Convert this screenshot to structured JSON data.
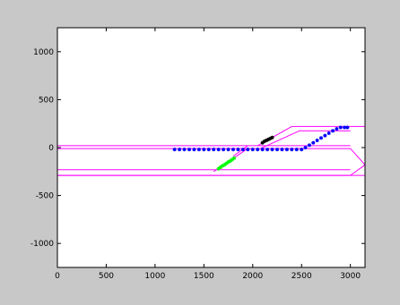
{
  "chart_data": {
    "type": "scatter",
    "xlim": [
      0,
      3150
    ],
    "ylim": [
      -1250,
      1250
    ],
    "x_ticks": [
      0,
      500,
      1000,
      1500,
      2000,
      2500,
      3000
    ],
    "y_ticks": [
      1000,
      500,
      0,
      -500,
      -1000
    ],
    "x_tick_labels": [
      "0",
      "500",
      "1000",
      "1500",
      "2000",
      "2500",
      "3000"
    ],
    "y_tick_labels": [
      "1000",
      "500",
      "0",
      "-500",
      "-1000"
    ],
    "grid": false,
    "colors": {
      "background": "#c8c8c8",
      "axes": "#ffffff",
      "outline": "#ff00ff",
      "blue": "#0000ff",
      "black": "#000000",
      "green": "#00ff00"
    },
    "outline_lines": [
      {
        "x": [
          0,
          3000
        ],
        "y": [
          -10,
          -10
        ]
      },
      {
        "x": [
          0,
          3000
        ],
        "y": [
          20,
          20
        ]
      },
      {
        "x": [
          0,
          3000
        ],
        "y": [
          -230,
          -230
        ]
      },
      {
        "x": [
          0,
          3000
        ],
        "y": [
          -290,
          -290
        ]
      },
      {
        "x": [
          2400,
          3000
        ],
        "y": [
          220,
          220
        ]
      },
      {
        "x": [
          2480,
          3000
        ],
        "y": [
          175,
          175
        ]
      },
      {
        "x": [
          2400,
          2050
        ],
        "y": [
          220,
          20
        ]
      },
      {
        "x": [
          2480,
          2080
        ],
        "y": [
          175,
          -10
        ]
      },
      {
        "x": [
          3000,
          3150
        ],
        "y": [
          220,
          220
        ]
      },
      {
        "x": [
          3150,
          3150
        ],
        "y": [
          220,
          -290
        ]
      },
      {
        "x": [
          3000,
          3150
        ],
        "y": [
          -10,
          -180
        ]
      },
      {
        "x": [
          3150,
          3000
        ],
        "y": [
          -180,
          -290
        ]
      },
      {
        "x": [
          0,
          3150
        ],
        "y": [
          -290,
          -290
        ]
      },
      {
        "x": [
          1950,
          1600
        ],
        "y": [
          -10,
          -250
        ]
      },
      {
        "x": [
          1950,
          1800
        ],
        "y": [
          20,
          -90
        ]
      }
    ],
    "series": [
      {
        "color": "blue",
        "x": [
          1200,
          1250,
          1300,
          1350,
          1400,
          1450,
          1500,
          1550,
          1600,
          1650,
          1700,
          1750,
          1800,
          1850,
          1900,
          1950,
          2000,
          2050,
          2100,
          2150,
          2200,
          2250,
          2300,
          2350,
          2400,
          2450,
          2500,
          2540,
          2580,
          2620,
          2660,
          2700,
          2740,
          2780,
          2820,
          2860,
          2900,
          2940,
          2970
        ],
        "y": [
          -20,
          -20,
          -20,
          -20,
          -20,
          -20,
          -20,
          -20,
          -20,
          -20,
          -20,
          -20,
          -20,
          -20,
          -20,
          -20,
          -20,
          -20,
          -20,
          -20,
          -20,
          -20,
          -20,
          -20,
          -20,
          -20,
          -20,
          0,
          25,
          50,
          75,
          100,
          125,
          150,
          175,
          195,
          210,
          210,
          210
        ]
      },
      {
        "color": "black",
        "x": [
          2100,
          2120,
          2140,
          2160,
          2180,
          2200
        ],
        "y": [
          50,
          65,
          75,
          85,
          95,
          105
        ]
      },
      {
        "color": "green",
        "x": [
          1650,
          1670,
          1690,
          1710,
          1730,
          1750,
          1770,
          1790,
          1810
        ],
        "y": [
          -220,
          -205,
          -190,
          -180,
          -165,
          -150,
          -140,
          -125,
          -110
        ]
      }
    ]
  }
}
